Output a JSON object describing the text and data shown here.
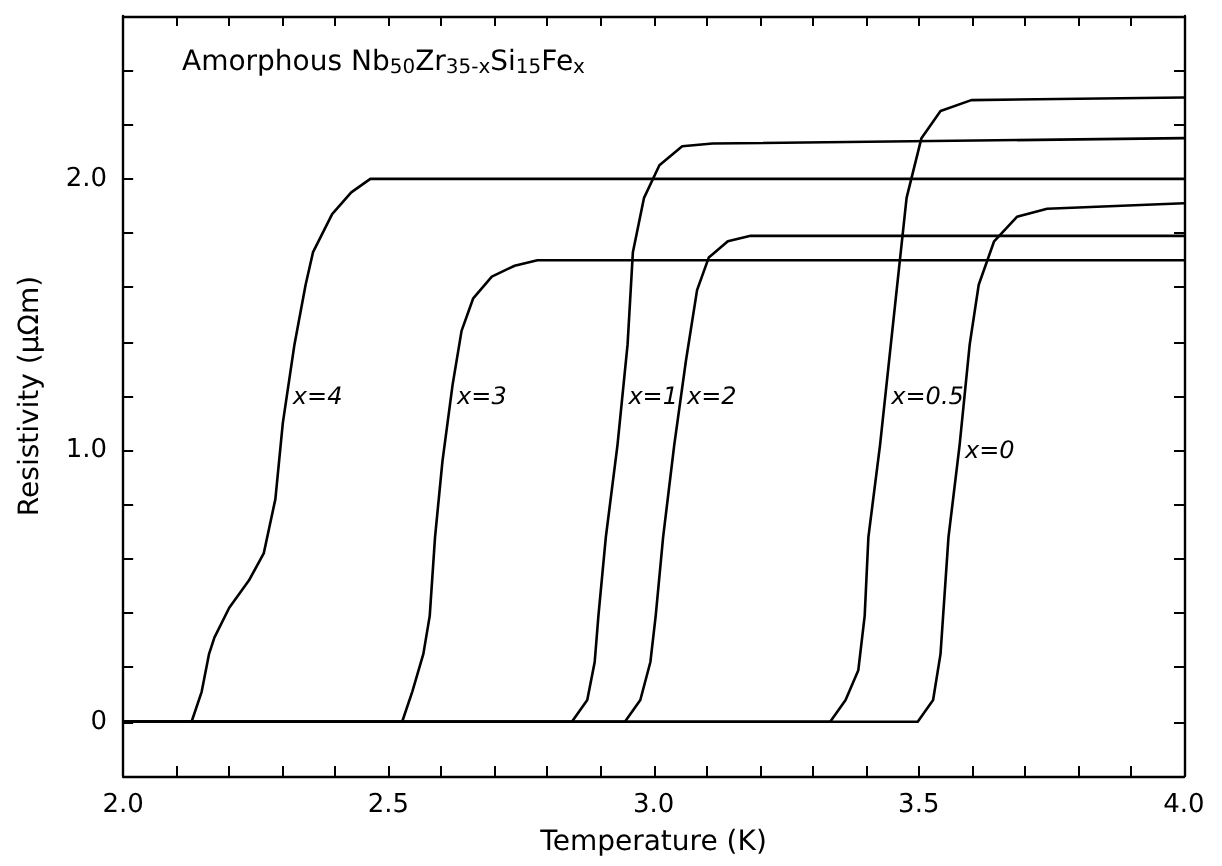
{
  "chart_data": {
    "type": "line",
    "title": "Amorphous Nb$_{50}$Zr$_{35-x}$Si$_{15}$Fe$_{x}$",
    "xlabel": "Temperature (K)",
    "ylabel": "Resistivity (μΩm)",
    "marker": "none",
    "line_style": "solid",
    "grid": false,
    "xlim": [
      2.0,
      4.0
    ],
    "ylim": [
      -0.2,
      2.6
    ],
    "xticks": [
      {
        "value": 2.0,
        "label": "2.0"
      },
      {
        "value": 2.1,
        "label": null
      },
      {
        "value": 2.2,
        "label": null
      },
      {
        "value": 2.3,
        "label": null
      },
      {
        "value": 2.4,
        "label": null
      },
      {
        "value": 2.5,
        "label": "2.5"
      },
      {
        "value": 2.6,
        "label": null
      },
      {
        "value": 2.7,
        "label": null
      },
      {
        "value": 2.8,
        "label": null
      },
      {
        "value": 2.9,
        "label": null
      },
      {
        "value": 3.0,
        "label": "3.0"
      },
      {
        "value": 3.1,
        "label": null
      },
      {
        "value": 3.2,
        "label": null
      },
      {
        "value": 3.3,
        "label": null
      },
      {
        "value": 3.4,
        "label": null
      },
      {
        "value": 3.5,
        "label": "3.5"
      },
      {
        "value": 3.6,
        "label": null
      },
      {
        "value": 3.7,
        "label": null
      },
      {
        "value": 3.8,
        "label": null
      },
      {
        "value": 3.9,
        "label": null
      },
      {
        "value": 4.0,
        "label": "4.0"
      }
    ],
    "yticks": [
      0,
      {
        "value": 0.2,
        "label": null
      },
      {
        "value": 0.4,
        "label": null
      },
      {
        "value": 0.6,
        "label": null
      },
      {
        "value": 0.8,
        "label": null
      },
      {
        "value": 1.0,
        "label": "1.0"
      },
      {
        "value": 1.2,
        "label": null
      },
      {
        "value": 1.4,
        "label": null
      },
      {
        "value": 1.6,
        "label": null
      },
      {
        "value": 1.8,
        "label": null
      },
      {
        "value": 2.0,
        "label": "2.0"
      },
      {
        "value": 2.2,
        "label": null
      },
      {
        "value": 2.4,
        "label": null
      }
    ],
    "series": [
      {
        "name": "x=4",
        "color": "#000000",
        "x": [
          2.0,
          2.129,
          2.148,
          2.162,
          2.172,
          2.2,
          2.237,
          2.265,
          2.287,
          2.301,
          2.323,
          2.344,
          2.358,
          2.394,
          2.43,
          2.466,
          4.0
        ],
        "values": [
          0,
          0,
          0.11,
          0.25,
          0.31,
          0.42,
          0.52,
          0.62,
          0.82,
          1.1,
          1.39,
          1.61,
          1.73,
          1.87,
          1.95,
          2.0,
          2.0
        ]
      },
      {
        "name": "x=3",
        "color": "#000000",
        "x": [
          2.0,
          2.526,
          2.545,
          2.566,
          2.578,
          2.588,
          2.602,
          2.621,
          2.638,
          2.66,
          2.695,
          2.738,
          2.781,
          4.0
        ],
        "values": [
          0,
          0,
          0.11,
          0.25,
          0.39,
          0.68,
          0.96,
          1.24,
          1.44,
          1.56,
          1.64,
          1.68,
          1.7,
          1.7
        ]
      },
      {
        "name": "x=1",
        "color": "#000000",
        "x": [
          2.0,
          2.846,
          2.875,
          2.889,
          2.896,
          2.91,
          2.932,
          2.951,
          2.961,
          2.982,
          3.011,
          3.054,
          3.111,
          4.0
        ],
        "values": [
          0,
          0,
          0.08,
          0.22,
          0.39,
          0.68,
          1.02,
          1.39,
          1.73,
          1.93,
          2.05,
          2.12,
          2.13,
          2.15
        ]
      },
      {
        "name": "x=2",
        "color": "#000000",
        "x": [
          2.0,
          2.946,
          2.975,
          2.994,
          3.004,
          3.018,
          3.039,
          3.061,
          3.082,
          3.104,
          3.14,
          3.183,
          4.0
        ],
        "values": [
          0,
          0,
          0.08,
          0.22,
          0.39,
          0.68,
          1.02,
          1.33,
          1.59,
          1.71,
          1.77,
          1.79,
          1.79
        ]
      },
      {
        "name": "x=0.5",
        "color": "#000000",
        "x": [
          2.0,
          3.333,
          3.362,
          3.386,
          3.398,
          3.405,
          3.427,
          3.455,
          3.477,
          3.505,
          3.541,
          3.599,
          4.0
        ],
        "values": [
          0,
          0,
          0.08,
          0.19,
          0.39,
          0.68,
          1.02,
          1.53,
          1.93,
          2.15,
          2.25,
          2.29,
          2.3
        ]
      },
      {
        "name": "x=0",
        "color": "#000000",
        "x": [
          2.0,
          3.498,
          3.527,
          3.541,
          3.556,
          3.577,
          3.596,
          3.613,
          3.642,
          3.685,
          3.742,
          4.0
        ],
        "values": [
          0,
          0,
          0.08,
          0.25,
          0.68,
          1.02,
          1.39,
          1.61,
          1.77,
          1.86,
          1.89,
          1.91
        ]
      }
    ]
  }
}
